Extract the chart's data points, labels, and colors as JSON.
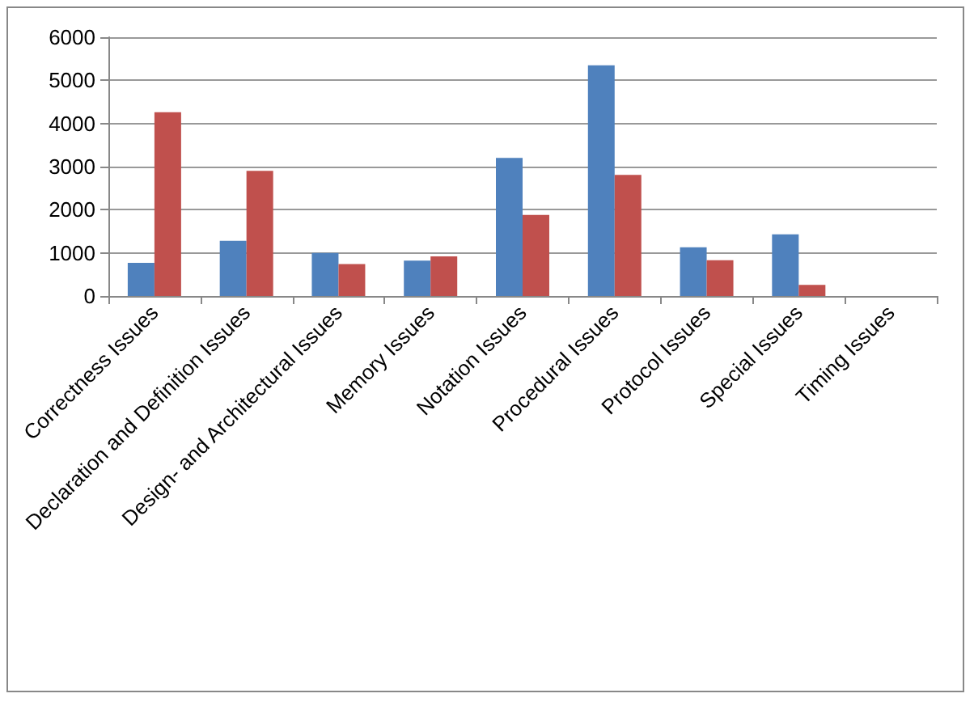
{
  "chart_data": {
    "type": "bar",
    "categories": [
      "Correctness Issues",
      "Declaration and Definition Issues",
      "Design- and Architectural Issues",
      "Memory Issues",
      "Notation Issues",
      "Procedural Issues",
      "Protocol Issues",
      "Special Issues",
      "Timing Issues"
    ],
    "series": [
      {
        "color": "#4f81bd",
        "values": [
          770,
          1280,
          1000,
          820,
          3200,
          5350,
          1130,
          1430,
          0
        ]
      },
      {
        "color": "#c0504d",
        "values": [
          4260,
          2900,
          740,
          920,
          1880,
          2810,
          830,
          260,
          0
        ]
      }
    ],
    "ylim": [
      0,
      6000
    ],
    "yticks": [
      0,
      1000,
      2000,
      3000,
      4000,
      5000,
      6000
    ],
    "grid": "y"
  }
}
